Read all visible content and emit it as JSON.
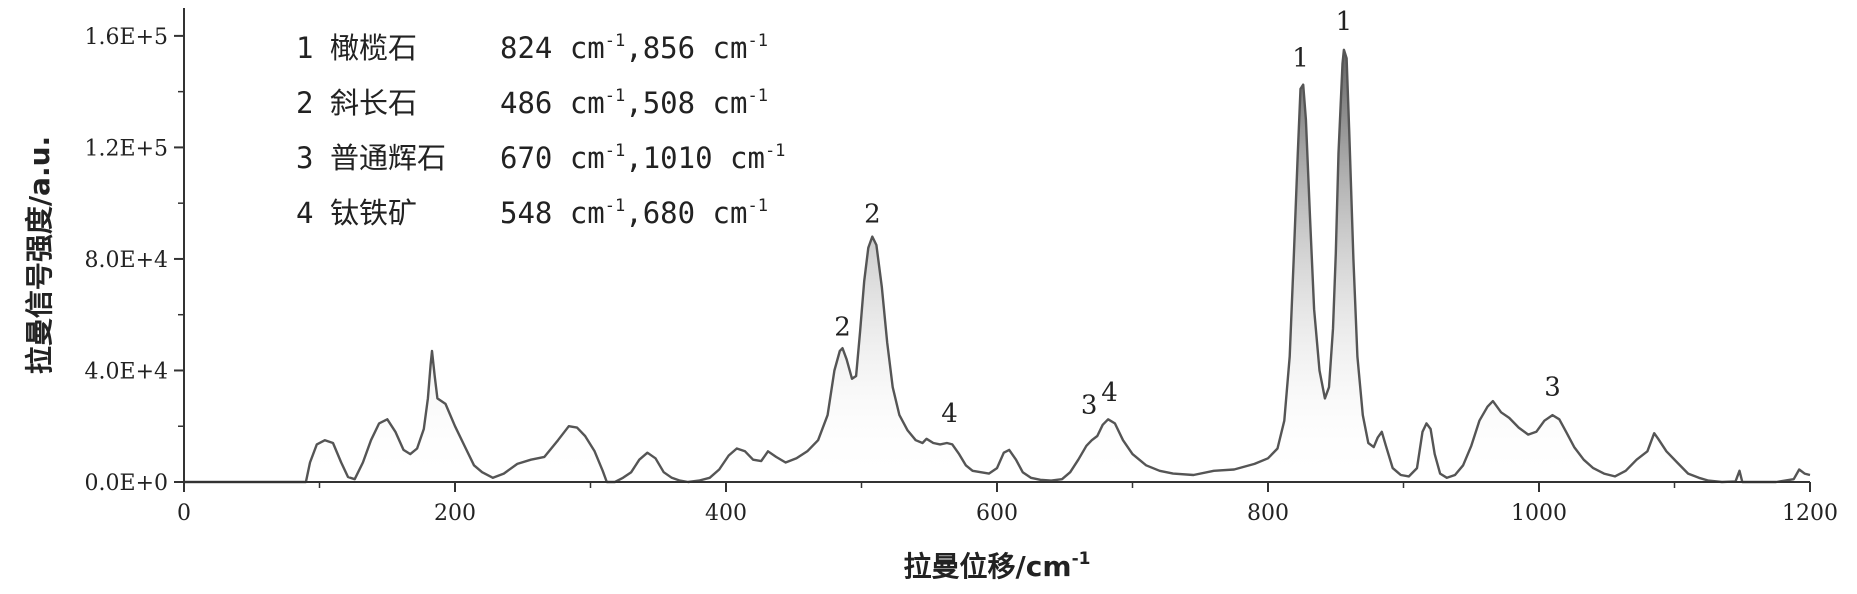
{
  "chart_data": {
    "type": "line",
    "xlabel": "拉曼位移/cm",
    "xlabel_sup": "-1",
    "ylabel": "拉曼信号强度/a.u.",
    "xlim": [
      0,
      1200
    ],
    "ylim": [
      0,
      170000
    ],
    "x_ticks": [
      0,
      200,
      400,
      600,
      800,
      1000,
      1200
    ],
    "x_tick_labels": [
      "0",
      "200",
      "400",
      "600",
      "800",
      "1000",
      "1200"
    ],
    "y_ticks": [
      0,
      40000,
      80000,
      120000,
      160000
    ],
    "y_tick_labels": [
      "0.0E+0",
      "4.0E+4",
      "8.0E+4",
      "1.2E+5",
      "1.6E+5"
    ],
    "grid": false,
    "legend_position": "top-left",
    "legend": [
      {
        "num": "1",
        "mineral": "橄榄石",
        "v1": "824",
        "v2": "856"
      },
      {
        "num": "2",
        "mineral": "斜长石",
        "v1": "486",
        "v2": "508"
      },
      {
        "num": "3",
        "mineral": "普通辉石",
        "v1": "670",
        "v2": "1010"
      },
      {
        "num": "4",
        "mineral": "钛铁矿",
        "v1": "548",
        "v2": "680"
      }
    ],
    "unit": "cm",
    "unit_sup": "-1",
    "peak_labels": [
      {
        "text": "2",
        "x": 486,
        "y": 47500
      },
      {
        "text": "2",
        "x": 508,
        "y": 88000
      },
      {
        "text": "4",
        "x": 565,
        "y": 16500
      },
      {
        "text": "3",
        "x": 668,
        "y": 19500
      },
      {
        "text": "4",
        "x": 683,
        "y": 24000
      },
      {
        "text": "1",
        "x": 824,
        "y": 144000
      },
      {
        "text": "1",
        "x": 856,
        "y": 157000
      },
      {
        "text": "3",
        "x": 1010,
        "y": 26000
      }
    ],
    "series": [
      {
        "values": [
          [
            0,
            0
          ],
          [
            90,
            0
          ],
          [
            93,
            7000
          ],
          [
            98,
            13500
          ],
          [
            104,
            15000
          ],
          [
            110,
            14000
          ],
          [
            116,
            7000
          ],
          [
            121,
            1800
          ],
          [
            126,
            1000
          ],
          [
            132,
            7000
          ],
          [
            138,
            15000
          ],
          [
            144,
            21000
          ],
          [
            150,
            22500
          ],
          [
            156,
            18000
          ],
          [
            162,
            11500
          ],
          [
            167,
            10000
          ],
          [
            172,
            12000
          ],
          [
            177,
            19000
          ],
          [
            180,
            30000
          ],
          [
            182,
            42000
          ],
          [
            183,
            47000
          ],
          [
            185,
            38000
          ],
          [
            187,
            30000
          ],
          [
            193,
            28000
          ],
          [
            200,
            20000
          ],
          [
            208,
            12000
          ],
          [
            214,
            6000
          ],
          [
            220,
            3500
          ],
          [
            228,
            1500
          ],
          [
            236,
            3000
          ],
          [
            246,
            6500
          ],
          [
            256,
            8000
          ],
          [
            266,
            9000
          ],
          [
            276,
            15000
          ],
          [
            284,
            20000
          ],
          [
            290,
            19500
          ],
          [
            296,
            16500
          ],
          [
            303,
            11000
          ],
          [
            309,
            4000
          ],
          [
            312,
            0
          ],
          [
            318,
            0
          ],
          [
            324,
            1500
          ],
          [
            330,
            3500
          ],
          [
            336,
            8000
          ],
          [
            342,
            10500
          ],
          [
            348,
            8500
          ],
          [
            354,
            3500
          ],
          [
            360,
            1500
          ],
          [
            366,
            500
          ],
          [
            372,
            0
          ],
          [
            380,
            500
          ],
          [
            388,
            1500
          ],
          [
            395,
            4500
          ],
          [
            402,
            9500
          ],
          [
            408,
            12000
          ],
          [
            414,
            11000
          ],
          [
            420,
            8000
          ],
          [
            426,
            7500
          ],
          [
            431,
            11000
          ],
          [
            437,
            9000
          ],
          [
            444,
            7000
          ],
          [
            452,
            8500
          ],
          [
            460,
            11000
          ],
          [
            468,
            15000
          ],
          [
            475,
            24000
          ],
          [
            480,
            40000
          ],
          [
            484,
            47000
          ],
          [
            486,
            48000
          ],
          [
            489,
            44000
          ],
          [
            493,
            37000
          ],
          [
            496,
            38000
          ],
          [
            499,
            54000
          ],
          [
            502,
            72000
          ],
          [
            505,
            84000
          ],
          [
            508,
            88000
          ],
          [
            511,
            85000
          ],
          [
            515,
            70000
          ],
          [
            519,
            50000
          ],
          [
            523,
            34000
          ],
          [
            528,
            24000
          ],
          [
            534,
            18500
          ],
          [
            540,
            15000
          ],
          [
            545,
            14000
          ],
          [
            548,
            15500
          ],
          [
            553,
            14000
          ],
          [
            558,
            13500
          ],
          [
            563,
            14000
          ],
          [
            567,
            13500
          ],
          [
            572,
            10000
          ],
          [
            577,
            6000
          ],
          [
            582,
            4000
          ],
          [
            588,
            3500
          ],
          [
            594,
            3000
          ],
          [
            600,
            5000
          ],
          [
            605,
            10500
          ],
          [
            609,
            11500
          ],
          [
            614,
            8000
          ],
          [
            619,
            3500
          ],
          [
            625,
            1500
          ],
          [
            632,
            800
          ],
          [
            640,
            500
          ],
          [
            648,
            1000
          ],
          [
            654,
            3500
          ],
          [
            660,
            8000
          ],
          [
            666,
            13000
          ],
          [
            670,
            15000
          ],
          [
            674,
            16500
          ],
          [
            678,
            20500
          ],
          [
            682,
            22500
          ],
          [
            687,
            21000
          ],
          [
            693,
            15000
          ],
          [
            700,
            10000
          ],
          [
            710,
            6000
          ],
          [
            720,
            4000
          ],
          [
            730,
            3000
          ],
          [
            745,
            2500
          ],
          [
            760,
            4000
          ],
          [
            775,
            4500
          ],
          [
            790,
            6500
          ],
          [
            800,
            8500
          ],
          [
            807,
            12000
          ],
          [
            812,
            22000
          ],
          [
            816,
            45000
          ],
          [
            819,
            80000
          ],
          [
            822,
            118000
          ],
          [
            824,
            141000
          ],
          [
            826,
            142500
          ],
          [
            828,
            130000
          ],
          [
            831,
            95000
          ],
          [
            834,
            62000
          ],
          [
            838,
            40000
          ],
          [
            842,
            30000
          ],
          [
            845,
            34000
          ],
          [
            848,
            55000
          ],
          [
            850,
            82000
          ],
          [
            852,
            118000
          ],
          [
            855,
            150000
          ],
          [
            856,
            155000
          ],
          [
            858,
            152000
          ],
          [
            860,
            125000
          ],
          [
            863,
            80000
          ],
          [
            866,
            45000
          ],
          [
            870,
            24000
          ],
          [
            874,
            14000
          ],
          [
            878,
            12500
          ],
          [
            881,
            16000
          ],
          [
            884,
            18000
          ],
          [
            887,
            13000
          ],
          [
            892,
            5000
          ],
          [
            898,
            2500
          ],
          [
            904,
            2000
          ],
          [
            910,
            5000
          ],
          [
            914,
            18000
          ],
          [
            917,
            21000
          ],
          [
            920,
            19000
          ],
          [
            923,
            10000
          ],
          [
            927,
            3000
          ],
          [
            932,
            1500
          ],
          [
            938,
            2500
          ],
          [
            944,
            6000
          ],
          [
            950,
            13000
          ],
          [
            956,
            22000
          ],
          [
            962,
            27000
          ],
          [
            966,
            29000
          ],
          [
            972,
            25000
          ],
          [
            978,
            23000
          ],
          [
            985,
            19500
          ],
          [
            992,
            17000
          ],
          [
            998,
            18000
          ],
          [
            1004,
            22000
          ],
          [
            1010,
            24000
          ],
          [
            1015,
            22500
          ],
          [
            1020,
            18000
          ],
          [
            1026,
            12500
          ],
          [
            1033,
            8000
          ],
          [
            1040,
            5000
          ],
          [
            1048,
            3000
          ],
          [
            1056,
            2000
          ],
          [
            1064,
            4000
          ],
          [
            1072,
            8000
          ],
          [
            1080,
            11000
          ],
          [
            1085,
            17500
          ],
          [
            1088,
            15500
          ],
          [
            1094,
            11000
          ],
          [
            1102,
            7000
          ],
          [
            1110,
            3000
          ],
          [
            1118,
            1500
          ],
          [
            1125,
            500
          ],
          [
            1135,
            0
          ],
          [
            1145,
            200
          ],
          [
            1148,
            4000
          ],
          [
            1150,
            0
          ],
          [
            1160,
            0
          ],
          [
            1175,
            0
          ],
          [
            1188,
            1000
          ],
          [
            1192,
            4500
          ],
          [
            1196,
            3000
          ],
          [
            1200,
            2500
          ]
        ]
      }
    ]
  }
}
